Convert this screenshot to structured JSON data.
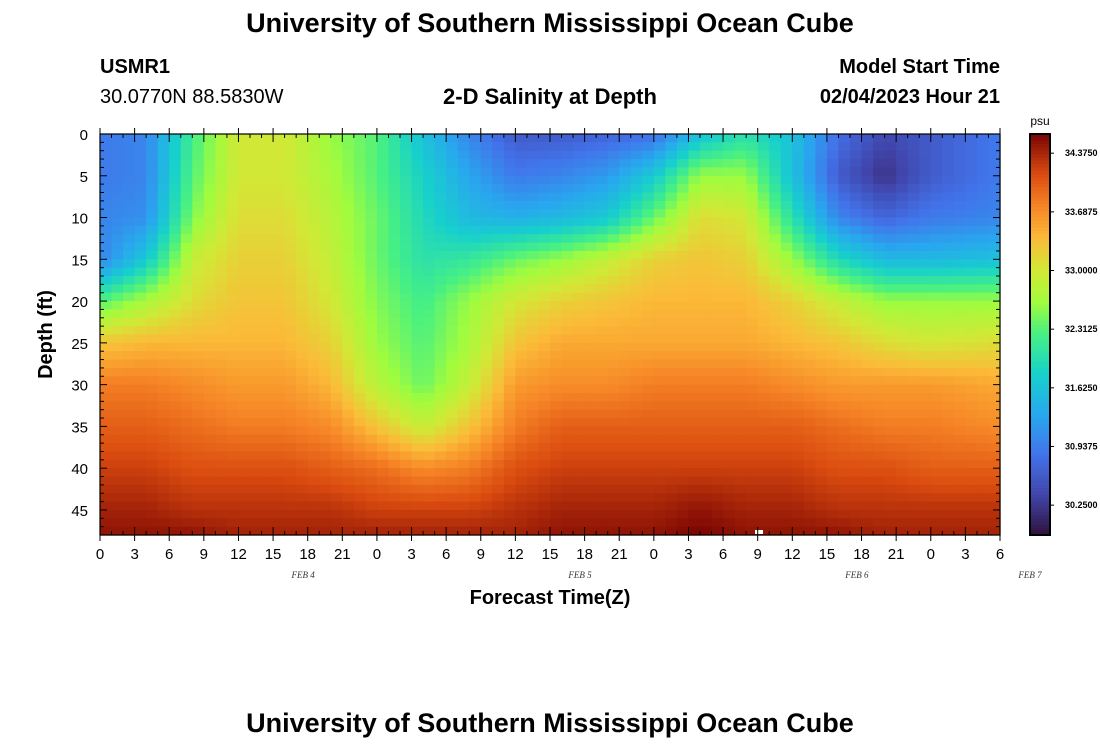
{
  "header": {
    "title": "University of Southern Mississippi Ocean Cube",
    "station": "USMR1",
    "coords": "30.0770N  88.5830W",
    "plot_title": "2-D Salinity at Depth",
    "model_label": "Model Start Time",
    "model_time": "02/04/2023 Hour 21"
  },
  "footer": {
    "title": "University of Southern Mississippi Ocean Cube"
  },
  "chart_data": {
    "type": "heatmap",
    "title": "2-D Salinity at Depth",
    "xlabel": "Forecast Time(Z)",
    "ylabel": "Depth (ft)",
    "x_tick_labels": [
      "0",
      "3",
      "6",
      "9",
      "12",
      "15",
      "18",
      "21",
      "0",
      "3",
      "6",
      "9",
      "12",
      "15",
      "18",
      "21",
      "0",
      "3",
      "6",
      "9",
      "12",
      "15",
      "18",
      "21",
      "0",
      "3",
      "6"
    ],
    "date_labels": [
      {
        "label": "FEB 4",
        "hours": 18.5
      },
      {
        "label": "FEB 5",
        "hours": 42.5
      },
      {
        "label": "FEB 6",
        "hours": 66.5
      },
      {
        "label": "FEB 7",
        "hours": 81.5
      }
    ],
    "xlim_hours": [
      0,
      78
    ],
    "ylim_depth_ft": [
      0,
      48
    ],
    "y_ticks": [
      0,
      5,
      10,
      15,
      20,
      25,
      30,
      35,
      40,
      45
    ],
    "y_inverted": true,
    "colorbar": {
      "unit": "psu",
      "min": 29.9,
      "max": 34.6,
      "ticks": [
        "34.3750",
        "33.6875",
        "33.0000",
        "32.3125",
        "31.6250",
        "30.9375",
        "30.2500"
      ],
      "tick_values": [
        34.375,
        33.6875,
        33.0,
        32.3125,
        31.625,
        30.9375,
        30.25
      ]
    },
    "grid_columns_hours": [
      0,
      4,
      8,
      12,
      16,
      20,
      24,
      28,
      32,
      36,
      40,
      44,
      48,
      52,
      56,
      60,
      64,
      68,
      72,
      78
    ],
    "grid_rows_depth_ft": [
      0,
      5,
      10,
      15,
      20,
      25,
      30,
      35,
      40,
      45,
      48
    ],
    "salinity_psu": [
      [
        30.9,
        31.0,
        32.2,
        33.0,
        33.0,
        32.6,
        32.3,
        31.6,
        31.0,
        30.6,
        30.6,
        30.7,
        30.8,
        31.6,
        32.0,
        31.6,
        30.8,
        30.4,
        30.6,
        30.9
      ],
      [
        30.9,
        31.0,
        32.3,
        33.0,
        33.0,
        32.7,
        32.3,
        31.8,
        31.3,
        30.9,
        31.0,
        31.2,
        31.7,
        32.6,
        32.6,
        31.6,
        30.6,
        30.2,
        30.6,
        30.9
      ],
      [
        31.0,
        31.1,
        32.5,
        33.1,
        33.1,
        32.8,
        32.4,
        31.9,
        31.5,
        31.4,
        31.5,
        31.7,
        32.4,
        33.1,
        33.0,
        32.0,
        31.0,
        30.7,
        30.9,
        31.0
      ],
      [
        31.0,
        31.7,
        32.9,
        33.2,
        33.2,
        32.9,
        32.4,
        32.0,
        32.1,
        32.4,
        32.6,
        32.9,
        33.2,
        33.3,
        33.2,
        32.6,
        31.9,
        31.5,
        31.5,
        31.6
      ],
      [
        32.3,
        32.7,
        33.1,
        33.3,
        33.3,
        33.0,
        32.5,
        32.2,
        32.6,
        33.0,
        33.2,
        33.3,
        33.4,
        33.4,
        33.4,
        33.2,
        32.9,
        32.6,
        32.6,
        32.6
      ],
      [
        33.3,
        33.4,
        33.4,
        33.4,
        33.4,
        33.2,
        32.6,
        32.3,
        32.7,
        33.3,
        33.5,
        33.5,
        33.5,
        33.5,
        33.5,
        33.4,
        33.3,
        33.1,
        33.0,
        33.1
      ],
      [
        33.8,
        33.8,
        33.7,
        33.6,
        33.6,
        33.4,
        32.8,
        32.4,
        32.9,
        33.6,
        33.7,
        33.7,
        33.8,
        33.8,
        33.8,
        33.7,
        33.6,
        33.6,
        33.6,
        33.5
      ],
      [
        34.0,
        34.0,
        33.9,
        33.8,
        33.8,
        33.7,
        33.3,
        32.9,
        33.3,
        33.8,
        34.0,
        34.0,
        34.0,
        34.0,
        34.0,
        34.0,
        33.9,
        33.8,
        33.8,
        33.7
      ],
      [
        34.2,
        34.2,
        34.1,
        34.1,
        34.1,
        34.0,
        33.9,
        33.7,
        33.8,
        34.1,
        34.2,
        34.2,
        34.2,
        34.2,
        34.2,
        34.2,
        34.1,
        34.1,
        34.0,
        34.0
      ],
      [
        34.4,
        34.4,
        34.3,
        34.3,
        34.3,
        34.3,
        34.2,
        34.2,
        34.2,
        34.3,
        34.4,
        34.4,
        34.4,
        34.5,
        34.4,
        34.4,
        34.3,
        34.3,
        34.3,
        34.3
      ],
      [
        34.5,
        34.5,
        34.5,
        34.4,
        34.4,
        34.4,
        34.4,
        34.4,
        34.4,
        34.4,
        34.5,
        34.5,
        34.5,
        34.6,
        34.5,
        34.5,
        34.5,
        34.4,
        34.4,
        34.4
      ]
    ]
  }
}
